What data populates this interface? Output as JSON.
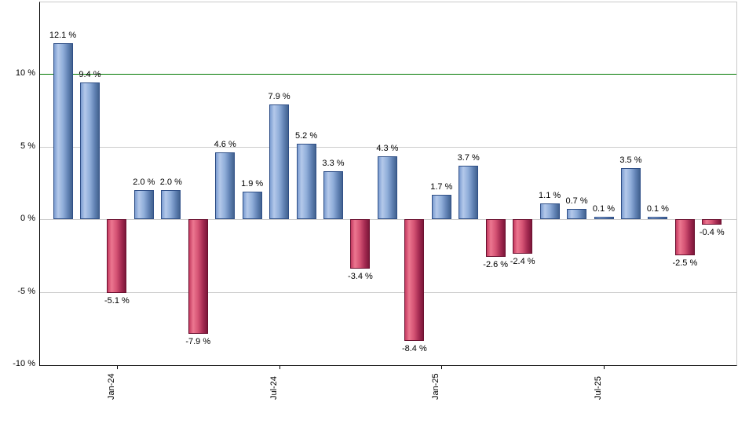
{
  "chart_data": {
    "type": "bar",
    "title": "",
    "xlabel": "",
    "ylabel": "",
    "legend": "none",
    "grid": "horizontal",
    "ylim": [
      -10,
      15
    ],
    "values": [
      12.1,
      9.4,
      -5.1,
      2.0,
      2.0,
      -7.9,
      4.6,
      1.9,
      7.9,
      5.2,
      3.3,
      -3.4,
      4.3,
      -8.4,
      1.7,
      3.7,
      -2.6,
      -2.4,
      1.1,
      0.7,
      0.1,
      3.5,
      0.1,
      -2.5,
      -0.4
    ],
    "bar_labels": [
      "12.1 %",
      "9.4 %",
      "-5.1 %",
      "2.0 %",
      "2.0 %",
      "-7.9 %",
      "4.6 %",
      "1.9 %",
      "7.9 %",
      "5.2 %",
      "3.3 %",
      "-3.4 %",
      "4.3 %",
      "-8.4 %",
      "1.7 %",
      "3.7 %",
      "-2.6 %",
      "-2.4 %",
      "1.1 %",
      "0.7 %",
      "0.1 %",
      "3.5 %",
      "0.1 %",
      "-2.5 %",
      "-0.4 %"
    ],
    "x_ticks": [
      {
        "label": "Jan-24",
        "bar_index": 2
      },
      {
        "label": "Jul-24",
        "bar_index": 8
      },
      {
        "label": "Jan-25",
        "bar_index": 14
      },
      {
        "label": "Jul-25",
        "bar_index": 20
      }
    ],
    "y_ticks": [
      {
        "label": "10 %",
        "value": 10
      },
      {
        "label": "5 %",
        "value": 5
      },
      {
        "label": "0 %",
        "value": 0
      },
      {
        "label": "-5 %",
        "value": -5
      },
      {
        "label": "-10 %",
        "value": -10
      }
    ],
    "reference_line": {
      "value": 10,
      "color": "#007700"
    },
    "colors": {
      "positive_bar": "#8FADD9",
      "positive_border": "#2F4F87",
      "negative_bar": "#D45273",
      "negative_border": "#6B1030",
      "gridline": "#CDCDCD",
      "axis": "#000000",
      "plot_border": "#C9C9C9",
      "background": "#FFFFFF",
      "label_text": "#000000"
    }
  }
}
